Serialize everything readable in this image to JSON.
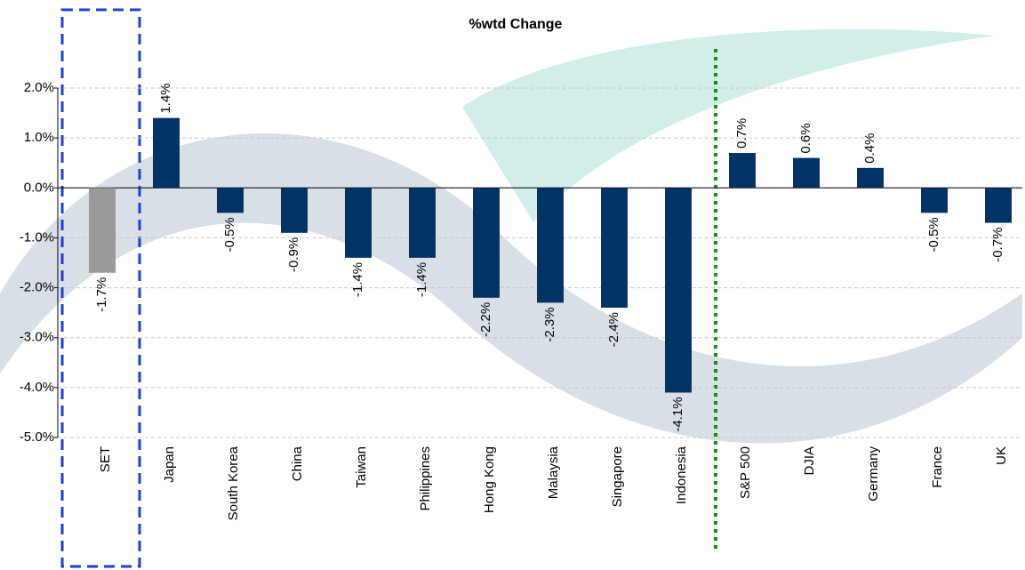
{
  "chart_data": {
    "type": "bar",
    "title": "%wtd Change",
    "categories": [
      "SET",
      "Japan",
      "South Korea",
      "China",
      "Taiwan",
      "Philippines",
      "Hong Kong",
      "Malaysia",
      "Singapore",
      "Indonesia",
      "S&P 500",
      "DJIA",
      "Germany",
      "France",
      "UK"
    ],
    "values": [
      -1.7,
      1.4,
      -0.5,
      -0.9,
      -1.4,
      -1.4,
      -2.2,
      -2.3,
      -2.4,
      -4.1,
      0.7,
      0.6,
      0.4,
      -0.5,
      -0.7
    ],
    "value_labels": [
      "-1.7%",
      "1.4%",
      "-0.5%",
      "-0.9%",
      "-1.4%",
      "-1.4%",
      "-2.2%",
      "-2.3%",
      "-2.4%",
      "-4.1%",
      "0.7%",
      "0.6%",
      "0.4%",
      "-0.5%",
      "-0.7%"
    ],
    "colors": [
      "#999999",
      "#003366",
      "#003366",
      "#003366",
      "#003366",
      "#003366",
      "#003366",
      "#003366",
      "#003366",
      "#003366",
      "#003366",
      "#003366",
      "#003366",
      "#003366",
      "#003366"
    ],
    "ylim": [
      -5,
      2
    ],
    "yticks": [
      {
        "value": 2,
        "label": "2.0%"
      },
      {
        "value": 1,
        "label": "1.0%"
      },
      {
        "value": 0,
        "label": "0.0%"
      },
      {
        "value": -1,
        "label": "-1.0%"
      },
      {
        "value": -2,
        "label": "-2.0%"
      },
      {
        "value": -3,
        "label": "-3.0%"
      },
      {
        "value": -4,
        "label": "-4.0%"
      },
      {
        "value": -5,
        "label": "-5.0%"
      }
    ],
    "grid": true
  }
}
